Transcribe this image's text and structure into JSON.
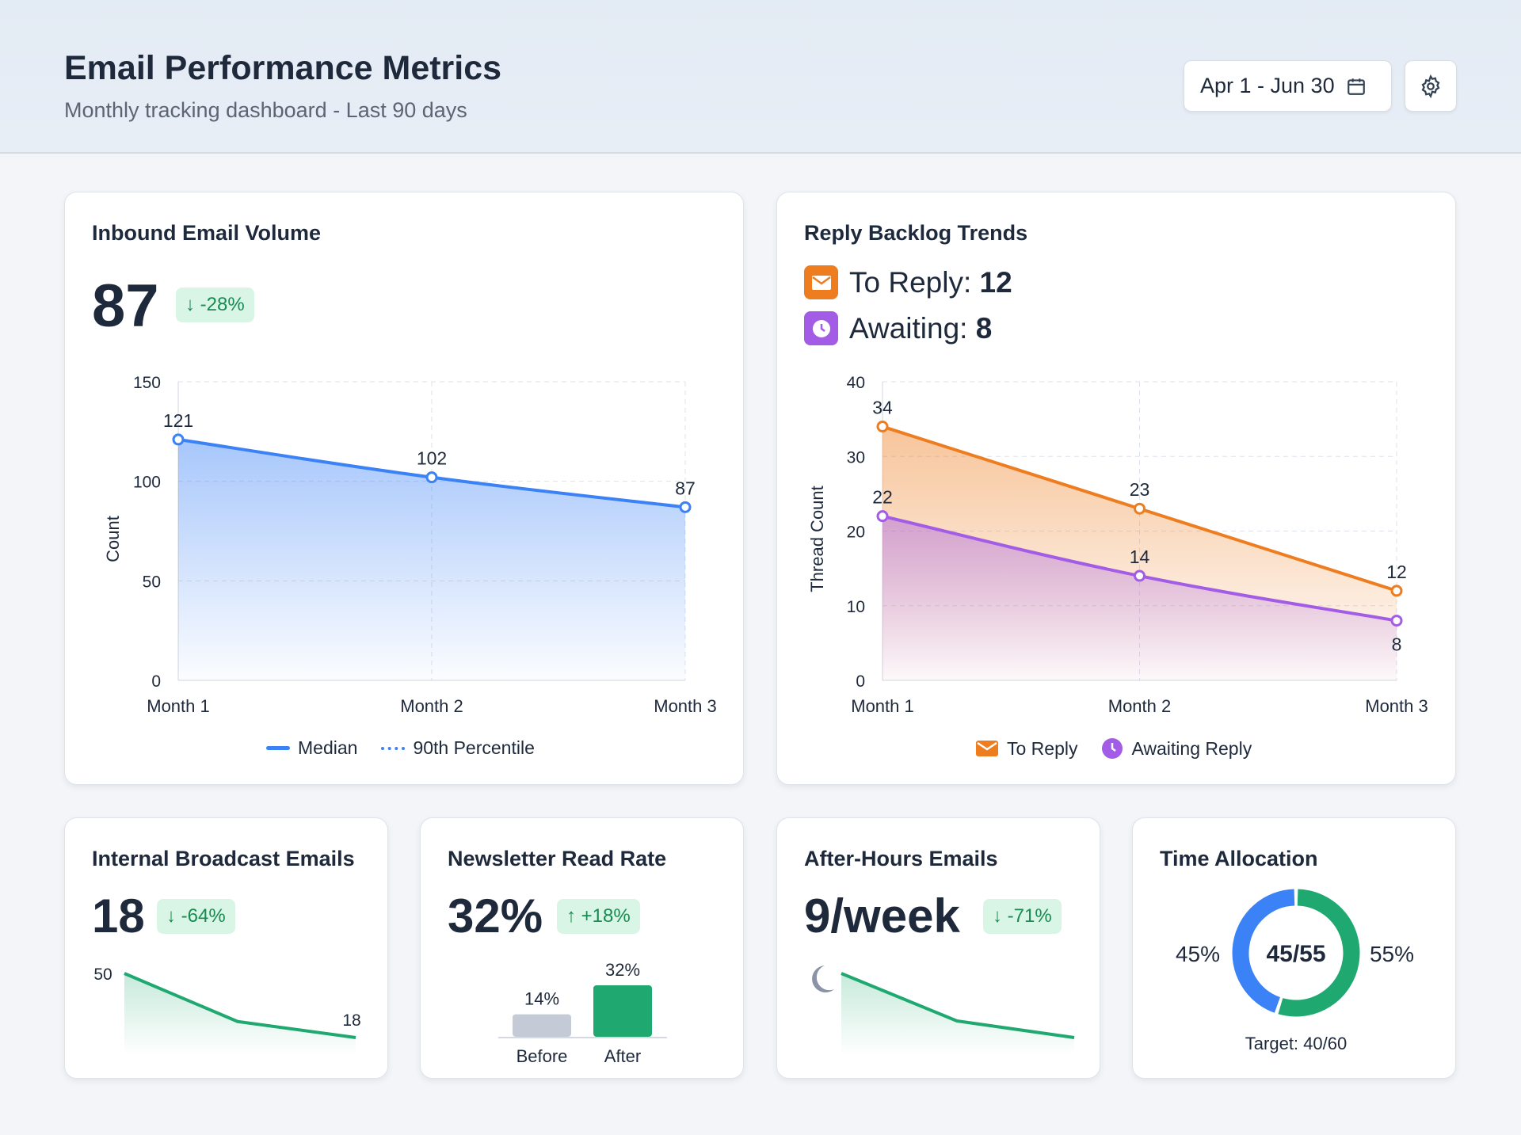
{
  "header": {
    "title": "Email Performance Metrics",
    "subtitle": "Monthly tracking dashboard - Last 90 days",
    "date_range": "Apr 1 - Jun 30",
    "icons": [
      "calendar-icon",
      "gear-icon"
    ]
  },
  "inbound": {
    "title": "Inbound Email Volume",
    "value": "87",
    "change": "↓ -28%",
    "legend": [
      "Median",
      "90th Percentile"
    ]
  },
  "backlog": {
    "title": "Reply Backlog Trends",
    "to_reply_label": "To Reply: ",
    "to_reply_value": "12",
    "awaiting_label": "Awaiting: ",
    "awaiting_value": "8",
    "legend": [
      "To Reply",
      "Awaiting Reply"
    ]
  },
  "broadcast": {
    "title": "Internal Broadcast Emails",
    "value": "18",
    "change": "↓ -64%",
    "start_label": "50",
    "end_label": "18"
  },
  "newsletter": {
    "title": "Newsletter Read Rate",
    "value": "32%",
    "change": "↑ +18%"
  },
  "afterhours": {
    "title": "After-Hours Emails",
    "value": "9/week",
    "change": "↓ -71%",
    "icon": "moon-icon"
  },
  "allocation": {
    "title": "Time Allocation",
    "center": "45/55",
    "left_label": "45%",
    "right_label": "55%",
    "target": "Target: 40/60",
    "values": [
      45,
      55
    ],
    "colors": [
      "#3b82f6",
      "#1fa971"
    ]
  },
  "colors": {
    "blue": "#3b82f6",
    "orange": "#ee7d1f",
    "purple": "#a35ce6",
    "green": "#1fa971",
    "badge_bg": "#d9f5e6"
  },
  "chart_data": [
    {
      "type": "area",
      "categories": [
        "Month 1",
        "Month 2",
        "Month 3"
      ],
      "series": [
        {
          "name": "Median",
          "values": [
            121,
            102,
            87
          ]
        }
      ],
      "ylabel": "Count",
      "ylim": [
        0,
        150
      ],
      "yticks": [
        0,
        50,
        100,
        150
      ],
      "grid": true,
      "legend": "bottom"
    },
    {
      "type": "area",
      "categories": [
        "Month 1",
        "Month 2",
        "Month 3"
      ],
      "series": [
        {
          "name": "To Reply",
          "values": [
            34,
            23,
            12
          ]
        },
        {
          "name": "Awaiting Reply",
          "values": [
            22,
            14,
            8
          ]
        }
      ],
      "ylabel": "Thread Count",
      "ylim": [
        0,
        40
      ],
      "yticks": [
        0,
        10,
        20,
        30,
        40
      ],
      "grid": true,
      "legend": "bottom"
    },
    {
      "type": "line",
      "values": [
        50,
        26,
        18
      ]
    },
    {
      "type": "bar",
      "categories": [
        "Before",
        "After"
      ],
      "values": [
        14,
        32
      ],
      "labels": [
        "14%",
        "32%"
      ]
    },
    {
      "type": "pie",
      "categories": [
        "45%",
        "55%"
      ],
      "values": [
        45,
        55
      ]
    }
  ]
}
